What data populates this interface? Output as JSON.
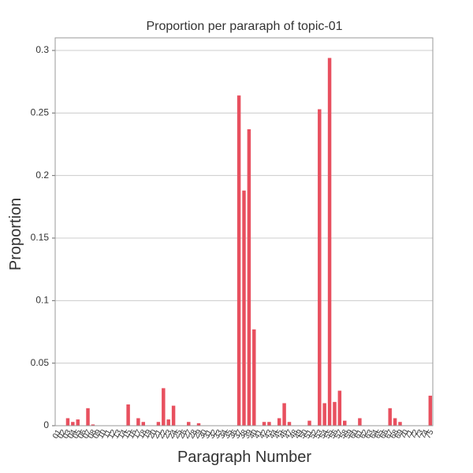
{
  "chart_data": {
    "type": "bar",
    "title": "Proportion per pararaph of topic-01",
    "x_label": "Paragraph Number",
    "y_label": "Proportion",
    "categories": [
      "01",
      "02",
      "03",
      "04",
      "05",
      "06",
      "07",
      "08",
      "09",
      "10",
      "11",
      "12",
      "13",
      "14",
      "15",
      "16",
      "17",
      "18",
      "19",
      "20",
      "21",
      "22",
      "23",
      "24",
      "25",
      "26",
      "27",
      "28",
      "29",
      "30",
      "31",
      "32",
      "33",
      "34",
      "35",
      "36",
      "37",
      "38",
      "39",
      "40",
      "41",
      "42",
      "43",
      "44",
      "45",
      "46",
      "47",
      "48",
      "49",
      "50",
      "51",
      "52",
      "53",
      "54",
      "55",
      "56",
      "57",
      "58",
      "59",
      "60",
      "61",
      "62",
      "63",
      "64",
      "65",
      "66",
      "67",
      "68",
      "69",
      "70",
      "71",
      "72",
      "73",
      "74",
      "75"
    ],
    "values": [
      0,
      0,
      0.006,
      0.003,
      0.005,
      0,
      0.014,
      0.001,
      0,
      0,
      0,
      0,
      0,
      0,
      0.017,
      0,
      0.006,
      0.003,
      0,
      0,
      0.003,
      0.03,
      0.005,
      0.016,
      0,
      0,
      0.003,
      0,
      0.002,
      0,
      0,
      0,
      0,
      0,
      0,
      0,
      0.264,
      0.188,
      0.237,
      0.077,
      0,
      0.003,
      0.003,
      0,
      0.006,
      0.018,
      0.003,
      0,
      0,
      0,
      0.004,
      0,
      0.253,
      0.018,
      0.294,
      0.019,
      0.028,
      0.004,
      0,
      0,
      0.006,
      0,
      0,
      0,
      0,
      0,
      0.014,
      0.006,
      0.003,
      0,
      0,
      0,
      0,
      0,
      0.024
    ],
    "color": "#e8505f",
    "ylim": [
      0,
      0.3
    ],
    "yticks": [
      0,
      0.05,
      0.1,
      0.15,
      0.2,
      0.25,
      0.3
    ],
    "grid": true
  }
}
